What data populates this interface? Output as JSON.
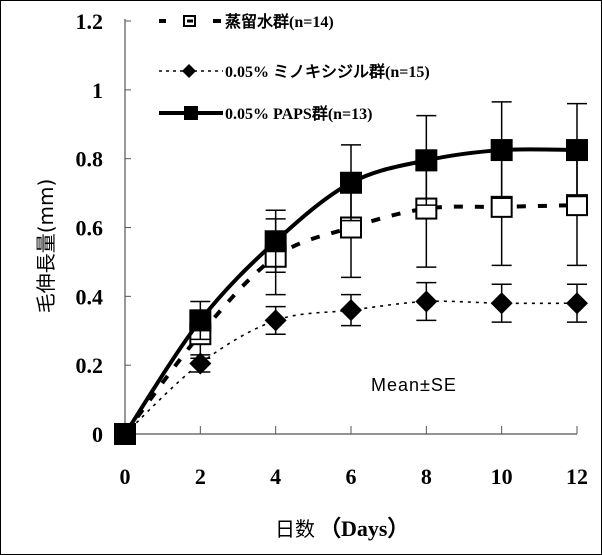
{
  "chart_data": {
    "type": "line",
    "title": "",
    "xlabel": "日数（Days）",
    "xlabel_parts": [
      "日数",
      "（Days）"
    ],
    "ylabel": "毛伸長量(mm)",
    "xlim": [
      0,
      12
    ],
    "ylim": [
      0,
      1.2
    ],
    "x_ticks": [
      0,
      2,
      4,
      6,
      8,
      10,
      12
    ],
    "x_tick_labels": [
      "0",
      "2",
      "4",
      "6",
      "8",
      "10",
      "12"
    ],
    "y_ticks": [
      0,
      0.2,
      0.4,
      0.6,
      0.8,
      1.0,
      1.2
    ],
    "y_tick_labels": [
      "0",
      "0.2",
      "0.4",
      "0.6",
      "0.8",
      "1",
      "1.2"
    ],
    "grid": false,
    "legend_position": "top-left",
    "annotation": "Mean±SE",
    "x": [
      0,
      2,
      4,
      6,
      8,
      10,
      12
    ],
    "series": [
      {
        "name": "蒸留水群(n=14)",
        "marker": "open-square",
        "line_style": "dashed",
        "values": [
          0,
          0.29,
          0.515,
          0.6,
          0.655,
          0.66,
          0.665
        ],
        "error": [
          0,
          0.07,
          0.11,
          0.145,
          0.17,
          0.17,
          0.175
        ]
      },
      {
        "name": "0.05% ミノキシジル群(n=15)",
        "marker": "filled-diamond",
        "line_style": "dotted",
        "values": [
          0,
          0.205,
          0.33,
          0.36,
          0.385,
          0.38,
          0.38
        ],
        "error": [
          0,
          0.025,
          0.04,
          0.045,
          0.055,
          0.055,
          0.055
        ]
      },
      {
        "name": "0.05% PAPS群(n=13)",
        "marker": "filled-square",
        "line_style": "solid",
        "values": [
          0,
          0.33,
          0.56,
          0.73,
          0.795,
          0.825,
          0.825
        ],
        "error": [
          0,
          0.055,
          0.09,
          0.11,
          0.13,
          0.14,
          0.135
        ]
      }
    ]
  },
  "colors": {
    "ink": "#000000",
    "axis": "#555555",
    "background": "#ffffff"
  }
}
